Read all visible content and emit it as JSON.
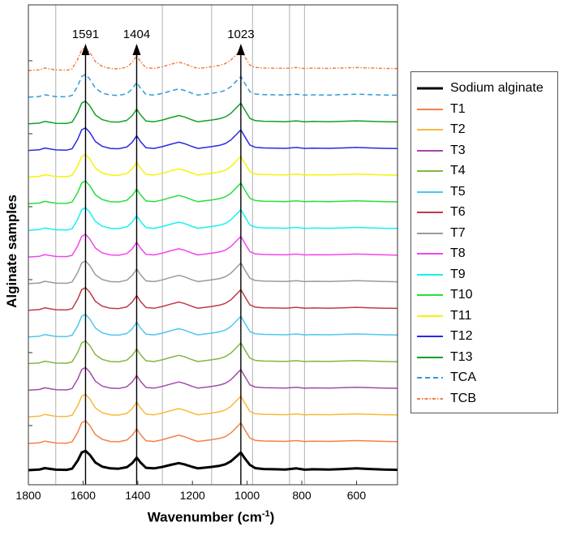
{
  "chart_data": {
    "type": "line",
    "title": "",
    "xlabel": "Wavenumber",
    "xlabel_unit_base": "cm",
    "xlabel_unit_exp": "-1",
    "ylabel": "Alginate samples",
    "xlim": [
      1800,
      450
    ],
    "x_reversed": true,
    "x_ticks": [
      1800,
      1600,
      1400,
      1200,
      1000,
      800,
      600
    ],
    "y_ticks_visible": false,
    "grid": false,
    "legend_placement": "right-outside",
    "vertical_guides": [
      1700,
      1310,
      1130,
      980,
      845,
      790
    ],
    "peaks": [
      {
        "x": 1591,
        "label": "1591"
      },
      {
        "x": 1404,
        "label": "1404"
      },
      {
        "x": 1023,
        "label": "1023"
      }
    ],
    "peak_profile": {
      "x": [
        1800,
        1760,
        1740,
        1700,
        1660,
        1640,
        1620,
        1605,
        1591,
        1575,
        1555,
        1530,
        1500,
        1470,
        1440,
        1420,
        1404,
        1390,
        1370,
        1340,
        1310,
        1280,
        1250,
        1230,
        1200,
        1180,
        1150,
        1130,
        1100,
        1080,
        1060,
        1040,
        1023,
        1010,
        990,
        970,
        940,
        900,
        860,
        820,
        790,
        760,
        700,
        650,
        600,
        550,
        500,
        450
      ],
      "y": [
        0,
        0.1,
        0.35,
        0.08,
        0.05,
        0.25,
        1.6,
        3.0,
        3.3,
        2.6,
        1.3,
        0.6,
        0.3,
        0.25,
        0.5,
        1.2,
        2.15,
        1.3,
        0.4,
        0.3,
        0.55,
        0.9,
        1.2,
        1.0,
        0.55,
        0.3,
        0.45,
        0.55,
        0.75,
        1.0,
        1.5,
        2.3,
        3.0,
        2.1,
        0.9,
        0.35,
        0.2,
        0.15,
        0.1,
        0.3,
        0.08,
        0.15,
        0.1,
        0.2,
        0.3,
        0.2,
        0.1,
        0.05
      ]
    },
    "series": [
      {
        "name": "Sodium alginate",
        "color": "#000000",
        "dash": "solid",
        "width": 3
      },
      {
        "name": "T1",
        "color": "#f4804a",
        "dash": "solid",
        "width": 1.5
      },
      {
        "name": "T2",
        "color": "#f9b93c",
        "dash": "solid",
        "width": 1.5
      },
      {
        "name": "T3",
        "color": "#a04ca8",
        "dash": "solid",
        "width": 1.5
      },
      {
        "name": "T4",
        "color": "#82b840",
        "dash": "solid",
        "width": 1.5
      },
      {
        "name": "T5",
        "color": "#4cc8ee",
        "dash": "solid",
        "width": 1.5
      },
      {
        "name": "T6",
        "color": "#c03a48",
        "dash": "solid",
        "width": 1.5
      },
      {
        "name": "T7",
        "color": "#9a9a9a",
        "dash": "solid",
        "width": 1.5
      },
      {
        "name": "T8",
        "color": "#f246ee",
        "dash": "solid",
        "width": 1.5
      },
      {
        "name": "T9",
        "color": "#14f2f2",
        "dash": "solid",
        "width": 1.5
      },
      {
        "name": "T10",
        "color": "#24e03c",
        "dash": "solid",
        "width": 1.5
      },
      {
        "name": "T11",
        "color": "#f6f20a",
        "dash": "solid",
        "width": 1.5
      },
      {
        "name": "T12",
        "color": "#2a2ae0",
        "dash": "solid",
        "width": 1.5
      },
      {
        "name": "T13",
        "color": "#14a024",
        "dash": "solid",
        "width": 1.5
      },
      {
        "name": "TCA",
        "color": "#2e9bd6",
        "dash": "dashed",
        "width": 1.5
      },
      {
        "name": "TCB",
        "color": "#f47c44",
        "dash": "dashdot",
        "width": 1.5
      }
    ]
  }
}
